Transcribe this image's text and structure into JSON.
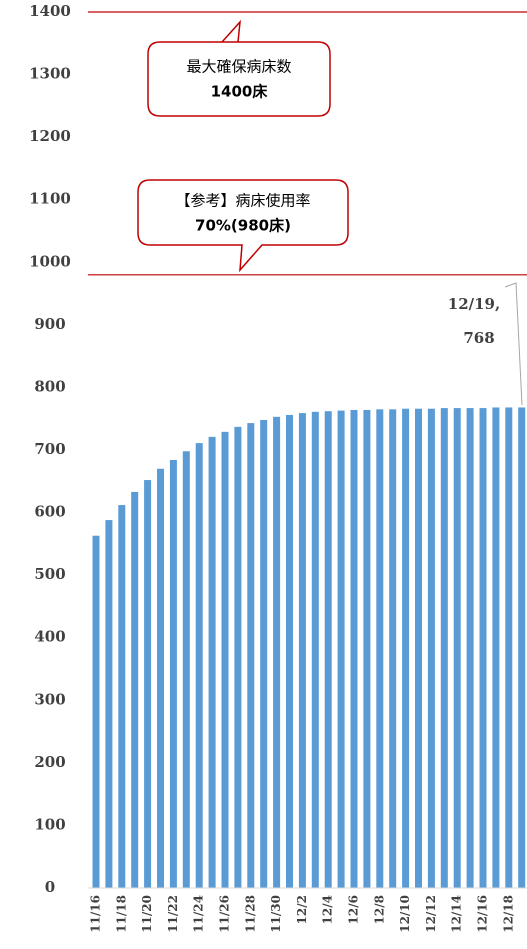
{
  "chart_data": {
    "type": "bar",
    "categories": [
      "11/16",
      null,
      "11/18",
      null,
      "11/20",
      null,
      "11/22",
      null,
      "11/24",
      null,
      "11/26",
      null,
      "11/28",
      null,
      "11/30",
      null,
      "12/2",
      null,
      "12/4",
      null,
      "12/6",
      null,
      "12/8",
      null,
      "12/10",
      null,
      "12/12",
      null,
      "12/14",
      null,
      "12/16",
      null,
      "12/18",
      null
    ],
    "values": [
      563,
      588,
      612,
      633,
      652,
      670,
      684,
      698,
      711,
      721,
      729,
      737,
      743,
      748,
      753,
      756,
      759,
      761,
      762,
      763,
      764,
      764,
      765,
      765,
      766,
      766,
      766,
      767,
      767,
      767,
      767,
      768,
      768,
      768
    ],
    "color": "#5b9bd5",
    "ylim": [
      0,
      1400
    ],
    "yticks": [
      0,
      100,
      200,
      300,
      400,
      500,
      600,
      700,
      800,
      900,
      1000,
      1100,
      1200,
      1300,
      1400
    ],
    "grid": false,
    "data_label_text": "12/19,",
    "reference_lines": [
      {
        "value": 1400,
        "color": "#c00000",
        "label": [
          "最大確保病床数",
          "1400床"
        ]
      },
      {
        "value": 980,
        "color": "#c00000",
        "label": [
          "【参考】病床使用率",
          "70%(980床)"
        ]
      }
    ]
  }
}
